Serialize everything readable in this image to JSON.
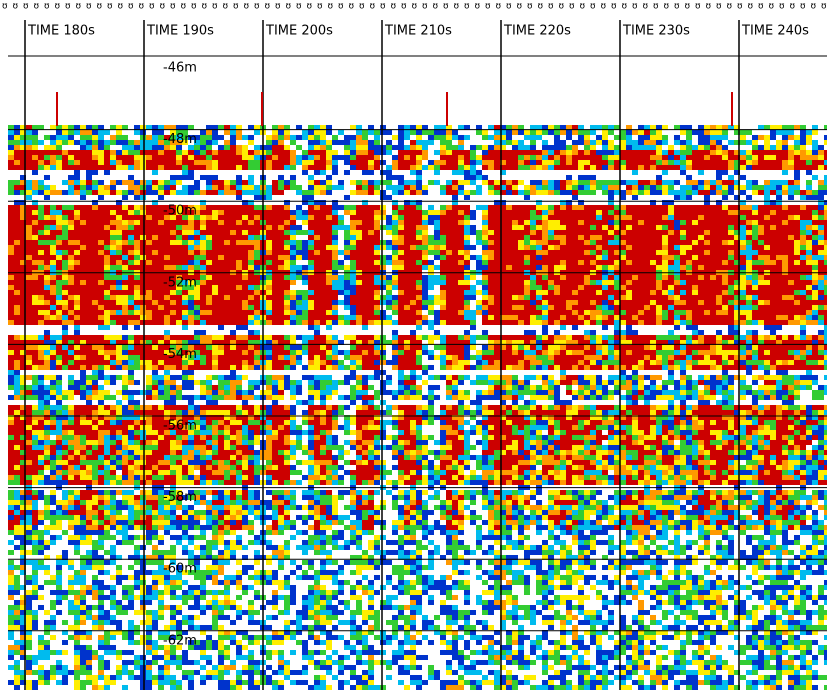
{
  "time_labels": [
    "TIME 180s",
    "TIME 190s",
    "TIME 200s",
    "TIME 210s",
    "TIME 220s",
    "TIME 230s",
    "TIME 240s"
  ],
  "depth_labels": [
    "-46m",
    "-48m",
    "-50m",
    "-52m",
    "-54m",
    "-56m",
    "-58m",
    "-60m",
    "-62m"
  ]
}
